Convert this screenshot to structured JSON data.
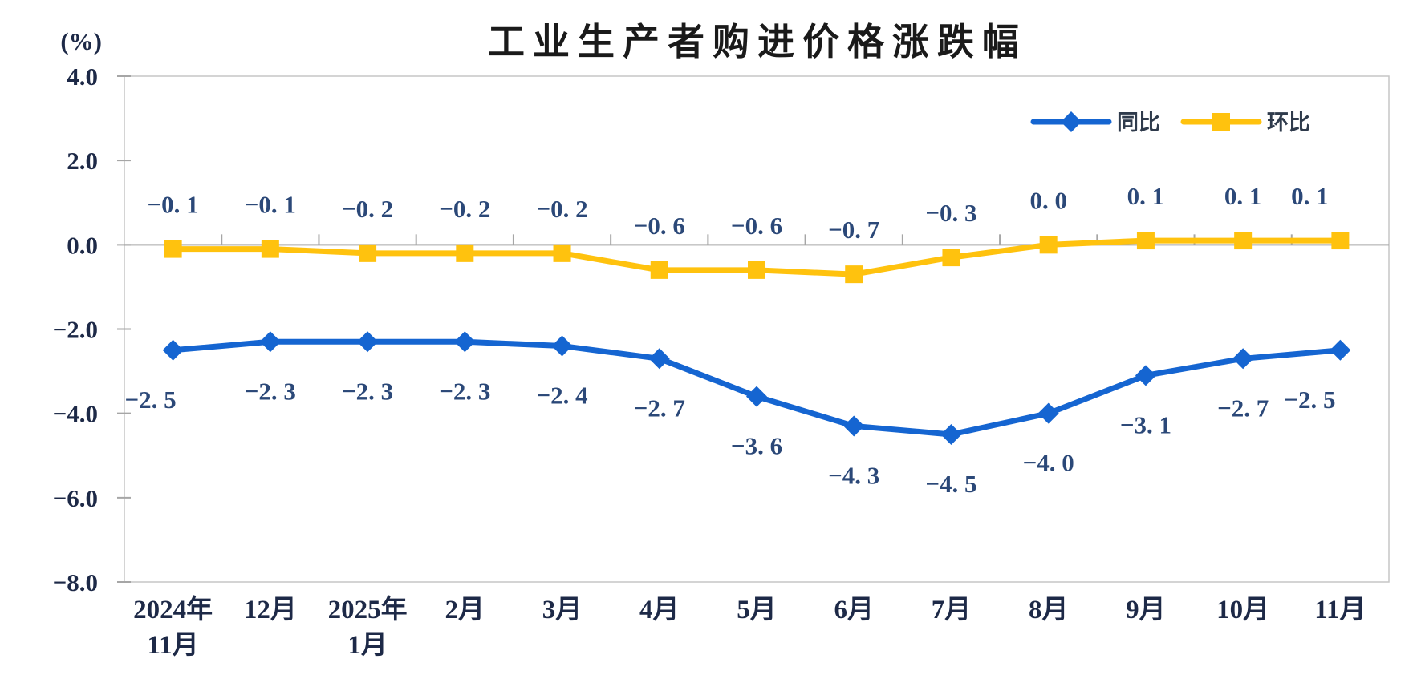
{
  "chart_data": {
    "type": "line",
    "title": "工业生产者购进价格涨跌幅",
    "unit": "(%)",
    "categories": [
      [
        "2024年",
        "11月"
      ],
      [
        "12月"
      ],
      [
        "2025年",
        "1月"
      ],
      [
        "2月"
      ],
      [
        "3月"
      ],
      [
        "4月"
      ],
      [
        "5月"
      ],
      [
        "6月"
      ],
      [
        "7月"
      ],
      [
        "8月"
      ],
      [
        "9月"
      ],
      [
        "10月"
      ],
      [
        "11月"
      ]
    ],
    "series": [
      {
        "id": "yoy",
        "name": "同比",
        "color": "#1565d1",
        "marker": "diamond",
        "label_position": "below",
        "values": [
          -2.5,
          -2.3,
          -2.3,
          -2.3,
          -2.4,
          -2.7,
          -3.6,
          -4.3,
          -4.5,
          -4.0,
          -3.1,
          -2.7,
          -2.5
        ]
      },
      {
        "id": "mom",
        "name": "环比",
        "color": "#ffc20e",
        "marker": "square",
        "label_position": "above",
        "values": [
          -0.1,
          -0.1,
          -0.2,
          -0.2,
          -0.2,
          -0.6,
          -0.6,
          -0.7,
          -0.3,
          0.0,
          0.1,
          0.1,
          0.1
        ]
      }
    ],
    "ylim": [
      -8.0,
      4.0
    ],
    "ytick_step": 2.0,
    "yticks": [
      "4.0",
      "2.0",
      "0.0",
      "−2.0",
      "−4.0",
      "−6.0",
      "−8.0"
    ],
    "legend_position": "top-right-inside",
    "grid": false,
    "zero_axis_line": true,
    "axis_color": "#a6a6a6",
    "border_color": "#c6c6c6",
    "data_label_color": "#2b4878",
    "axis_label_color": "#1d2947"
  }
}
